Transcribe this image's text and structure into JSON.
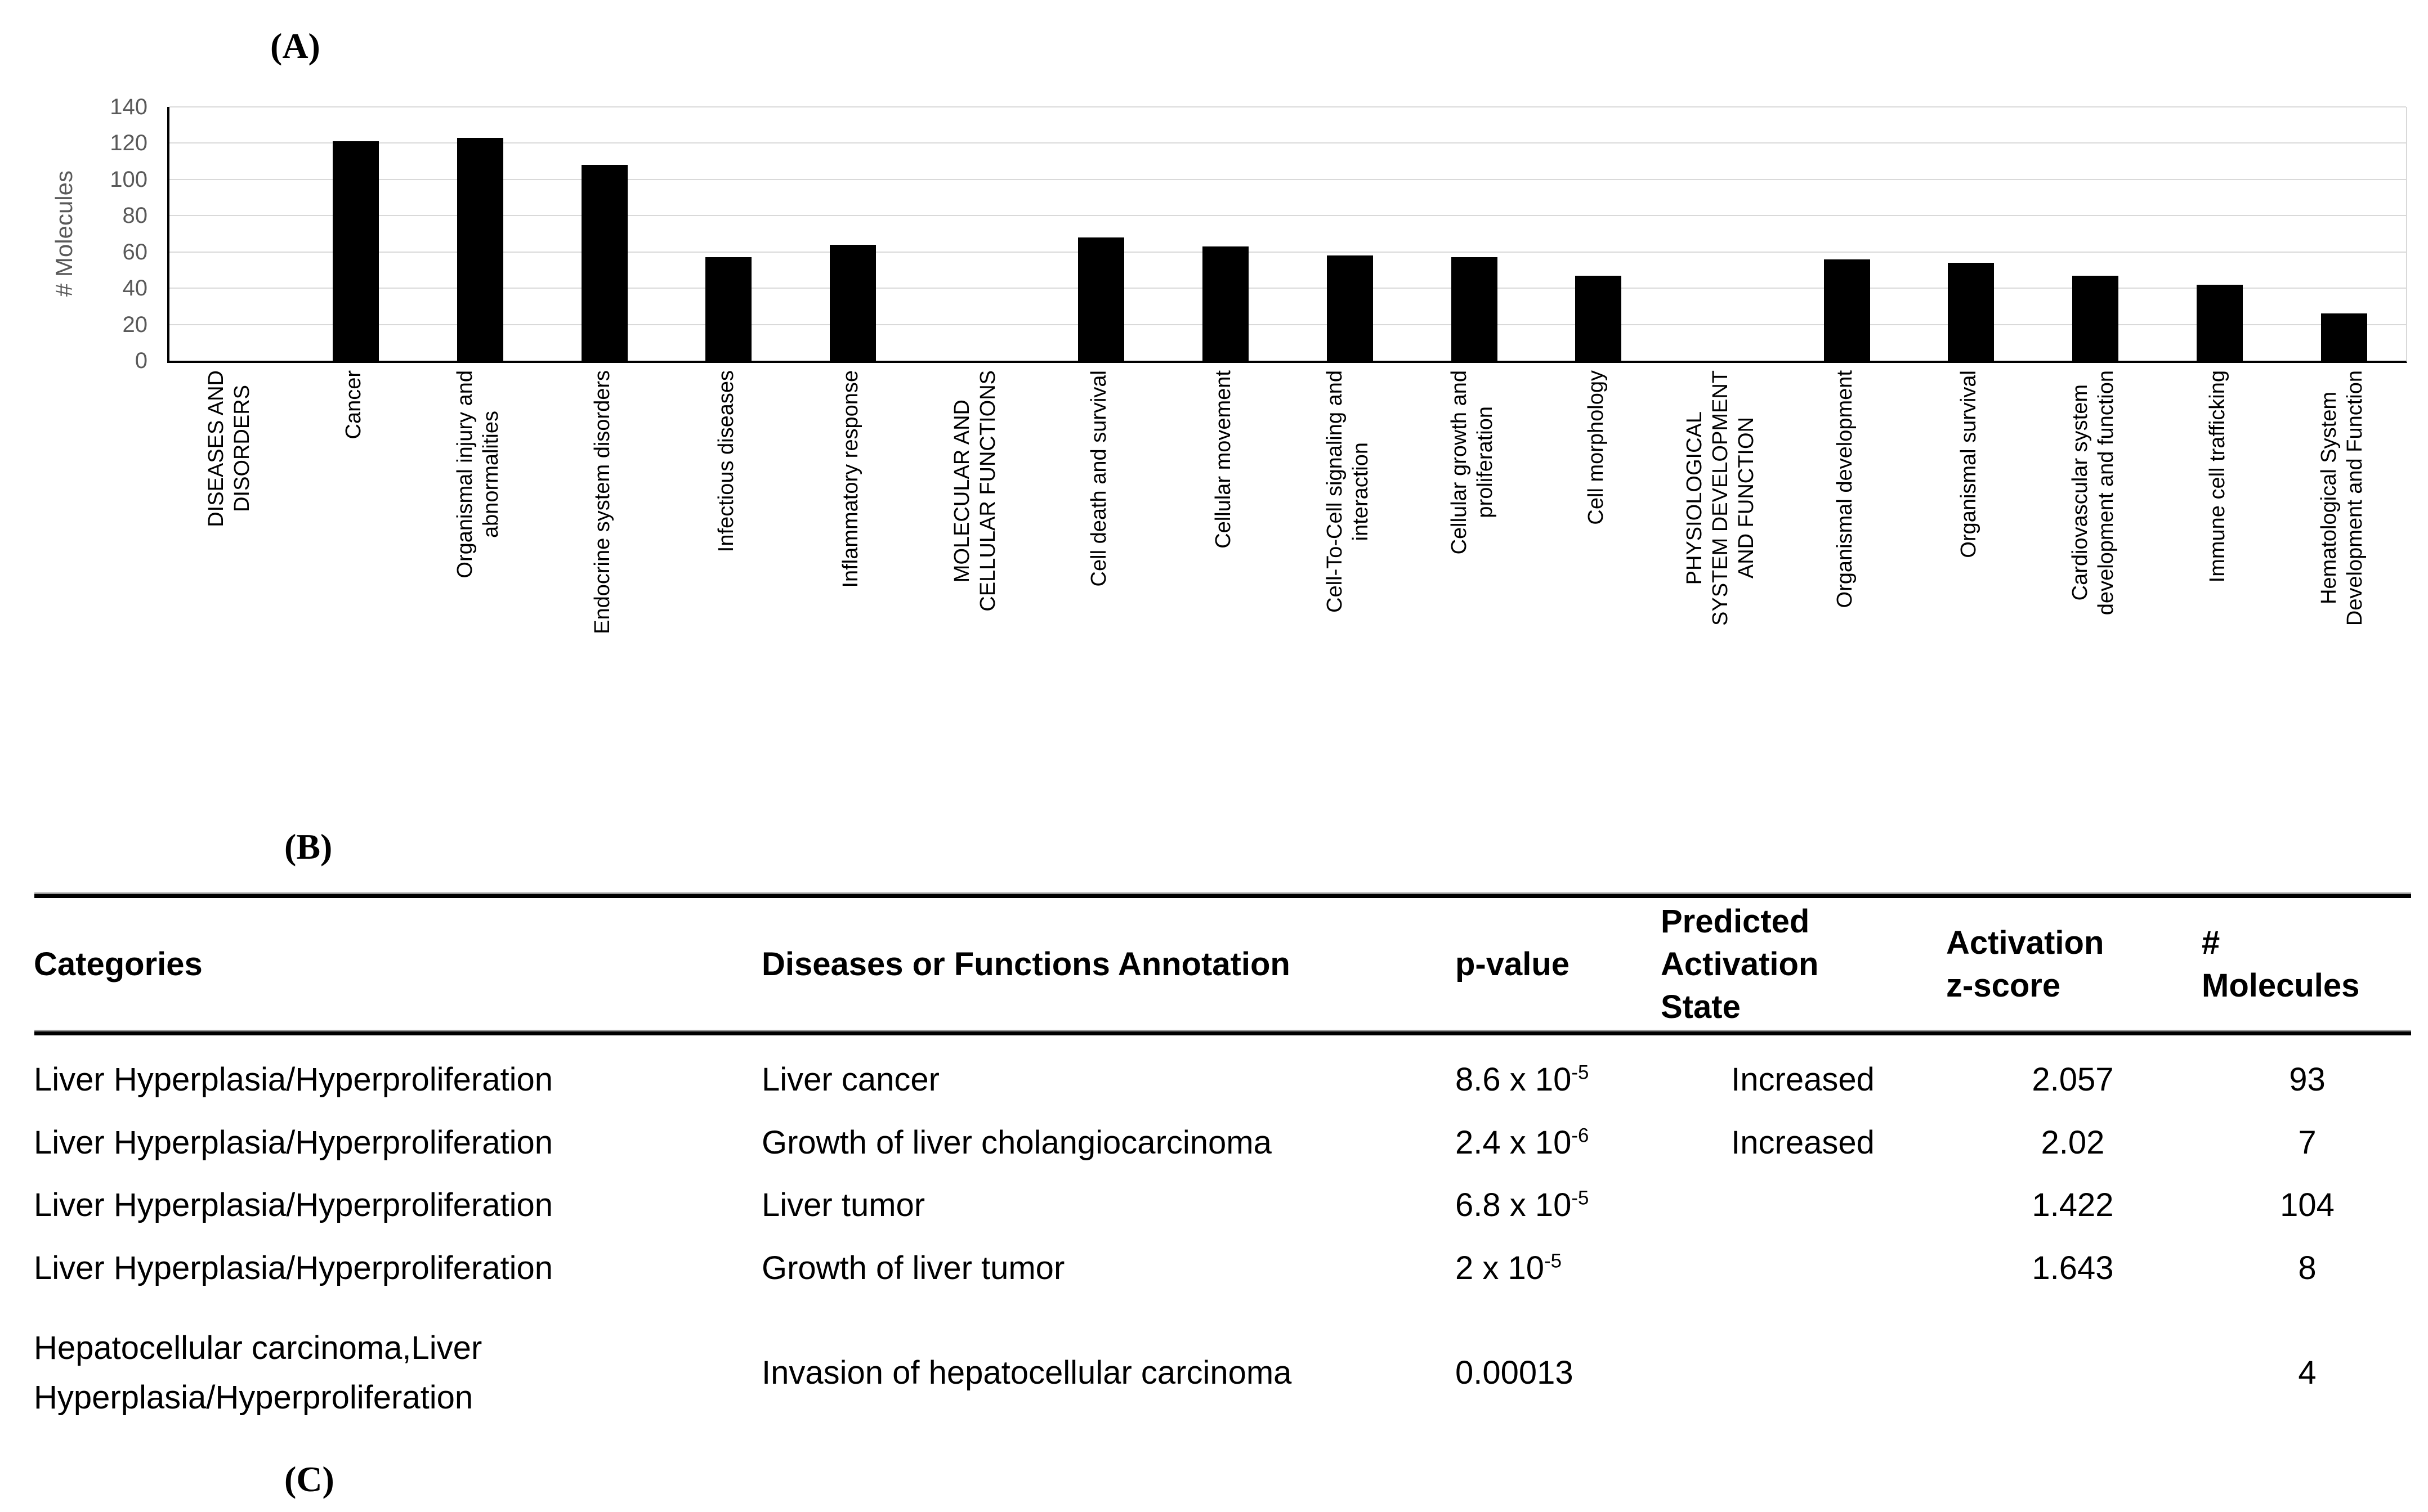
{
  "panel_labels": {
    "a": "(A)",
    "b": "(B)",
    "c": "(C)"
  },
  "colors": {
    "bar": "#000000",
    "gridline": "#d9d9d9",
    "axis": "#000000",
    "tick_label": "#595959",
    "text": "#000000"
  },
  "chart_data": {
    "type": "bar",
    "title": "",
    "xlabel": "",
    "ylabel": "# Molecules",
    "ylim": [
      0,
      140
    ],
    "yticks": [
      0,
      20,
      40,
      60,
      80,
      100,
      120,
      140
    ],
    "grid": "horizontal gridlines on",
    "legend": "none",
    "bar_color": "#000000",
    "categories": [
      {
        "lines": [
          "DISEASES AND",
          "DISORDERS"
        ],
        "value": null
      },
      {
        "lines": [
          "Cancer"
        ],
        "value": 121
      },
      {
        "lines": [
          "Organismal injury and",
          "abnormalities"
        ],
        "value": 123
      },
      {
        "lines": [
          "Endocrine system disorders"
        ],
        "value": 108
      },
      {
        "lines": [
          "Infectious diseases"
        ],
        "value": 57
      },
      {
        "lines": [
          "Inflammatory response"
        ],
        "value": 64
      },
      {
        "lines": [
          "MOLECULAR AND",
          "CELLULAR FUNCTIONS"
        ],
        "value": null
      },
      {
        "lines": [
          "Cell death and survival"
        ],
        "value": 68
      },
      {
        "lines": [
          "Cellular movement"
        ],
        "value": 63
      },
      {
        "lines": [
          "Cell-To-Cell signaling and",
          "interaction"
        ],
        "value": 58
      },
      {
        "lines": [
          "Cellular growth and",
          "proliferation"
        ],
        "value": 57
      },
      {
        "lines": [
          "Cell morphology"
        ],
        "value": 47
      },
      {
        "lines": [
          "PHYSIOLOGICAL",
          "SYSTEM DEVELOPMENT",
          "AND FUNCTION"
        ],
        "value": null
      },
      {
        "lines": [
          "Organismal development"
        ],
        "value": 56
      },
      {
        "lines": [
          "Organismal survival"
        ],
        "value": 54
      },
      {
        "lines": [
          "Cardiovascular system",
          "development and function"
        ],
        "value": 47
      },
      {
        "lines": [
          "Immune cell trafficking"
        ],
        "value": 42
      },
      {
        "lines": [
          "Hematological System",
          "Development and Function"
        ],
        "value": 26
      }
    ]
  },
  "table": {
    "headers": [
      {
        "lines": [
          "Categories"
        ]
      },
      {
        "lines": [
          "Diseases or Functions Annotation"
        ]
      },
      {
        "lines": [
          "p-value"
        ]
      },
      {
        "lines": [
          "Predicted",
          "Activation",
          "State"
        ]
      },
      {
        "lines": [
          "Activation",
          "z-score"
        ]
      },
      {
        "lines": [
          "#",
          "Molecules"
        ]
      }
    ],
    "rows": [
      {
        "category_lines": [
          "Liver Hyperplasia/Hyperproliferation"
        ],
        "annotation": "Liver cancer",
        "p_base": "8.6 x 10",
        "p_sup": "-5",
        "state": "Increased",
        "z_score": "2.057",
        "molecules": "93"
      },
      {
        "category_lines": [
          "Liver Hyperplasia/Hyperproliferation"
        ],
        "annotation": "Growth of liver cholangiocarcinoma",
        "p_base": "2.4 x 10",
        "p_sup": "-6",
        "state": "Increased",
        "z_score": "2.02",
        "molecules": "7"
      },
      {
        "category_lines": [
          "Liver Hyperplasia/Hyperproliferation"
        ],
        "annotation": "Liver tumor",
        "p_base": "6.8 x 10",
        "p_sup": "-5",
        "state": "",
        "z_score": "1.422",
        "molecules": "104"
      },
      {
        "category_lines": [
          "Liver Hyperplasia/Hyperproliferation"
        ],
        "annotation": "Growth of liver tumor",
        "p_base": "2 x 10",
        "p_sup": "-5",
        "state": "",
        "z_score": "1.643",
        "molecules": "8"
      },
      {
        "category_lines": [
          "Hepatocellular carcinoma,Liver",
          "Hyperplasia/Hyperproliferation"
        ],
        "annotation": "Invasion of hepatocellular carcinoma",
        "p_base": "0.00013",
        "p_sup": "",
        "state": "",
        "z_score": "",
        "molecules": "4"
      }
    ]
  }
}
